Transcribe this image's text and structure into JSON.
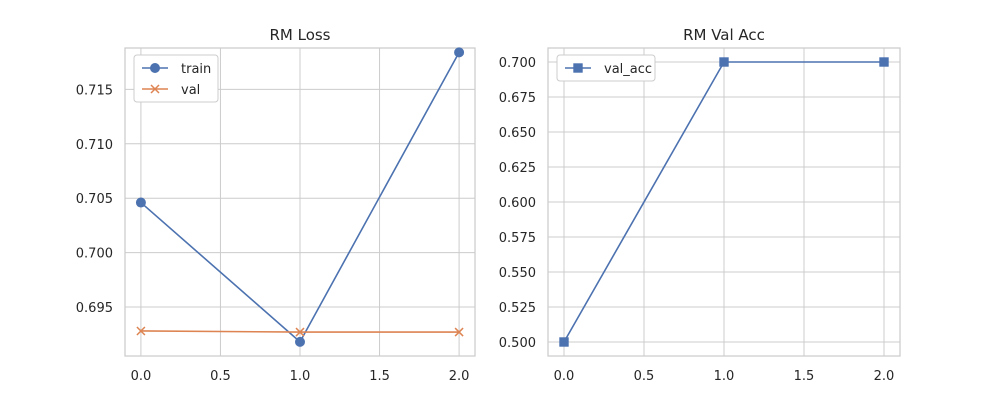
{
  "chart_data": [
    {
      "type": "line",
      "title": "RM Loss",
      "xlabel": "",
      "ylabel": "",
      "xlim": [
        -0.1,
        2.1
      ],
      "ylim": [
        0.6905,
        0.7188
      ],
      "xticks": [
        0.0,
        0.5,
        1.0,
        1.5,
        2.0
      ],
      "xtick_labels": [
        "0.0",
        "0.5",
        "1.0",
        "1.5",
        "2.0"
      ],
      "yticks": [
        0.695,
        0.7,
        0.705,
        0.71,
        0.715
      ],
      "ytick_labels": [
        "0.695",
        "0.700",
        "0.705",
        "0.710",
        "0.715"
      ],
      "grid": true,
      "legend": "top-left",
      "series": [
        {
          "name": "train",
          "marker": "circle",
          "color": "#4c72b0",
          "x": [
            0,
            1,
            2
          ],
          "y": [
            0.7046,
            0.6918,
            0.7184
          ]
        },
        {
          "name": "val",
          "marker": "x",
          "color": "#dd8452",
          "x": [
            0,
            1,
            2
          ],
          "y": [
            0.6928,
            0.6927,
            0.6927
          ]
        }
      ]
    },
    {
      "type": "line",
      "title": "RM Val Acc",
      "xlabel": "",
      "ylabel": "",
      "xlim": [
        -0.1,
        2.1
      ],
      "ylim": [
        0.49,
        0.71
      ],
      "xticks": [
        0.0,
        0.5,
        1.0,
        1.5,
        2.0
      ],
      "xtick_labels": [
        "0.0",
        "0.5",
        "1.0",
        "1.5",
        "2.0"
      ],
      "yticks": [
        0.5,
        0.525,
        0.55,
        0.575,
        0.6,
        0.625,
        0.65,
        0.675,
        0.7
      ],
      "ytick_labels": [
        "0.500",
        "0.525",
        "0.550",
        "0.575",
        "0.600",
        "0.625",
        "0.650",
        "0.675",
        "0.700"
      ],
      "grid": true,
      "legend": "top-left",
      "series": [
        {
          "name": "val_acc",
          "marker": "square",
          "color": "#4c72b0",
          "x": [
            0,
            1,
            2
          ],
          "y": [
            0.5,
            0.7,
            0.7
          ]
        }
      ]
    }
  ]
}
